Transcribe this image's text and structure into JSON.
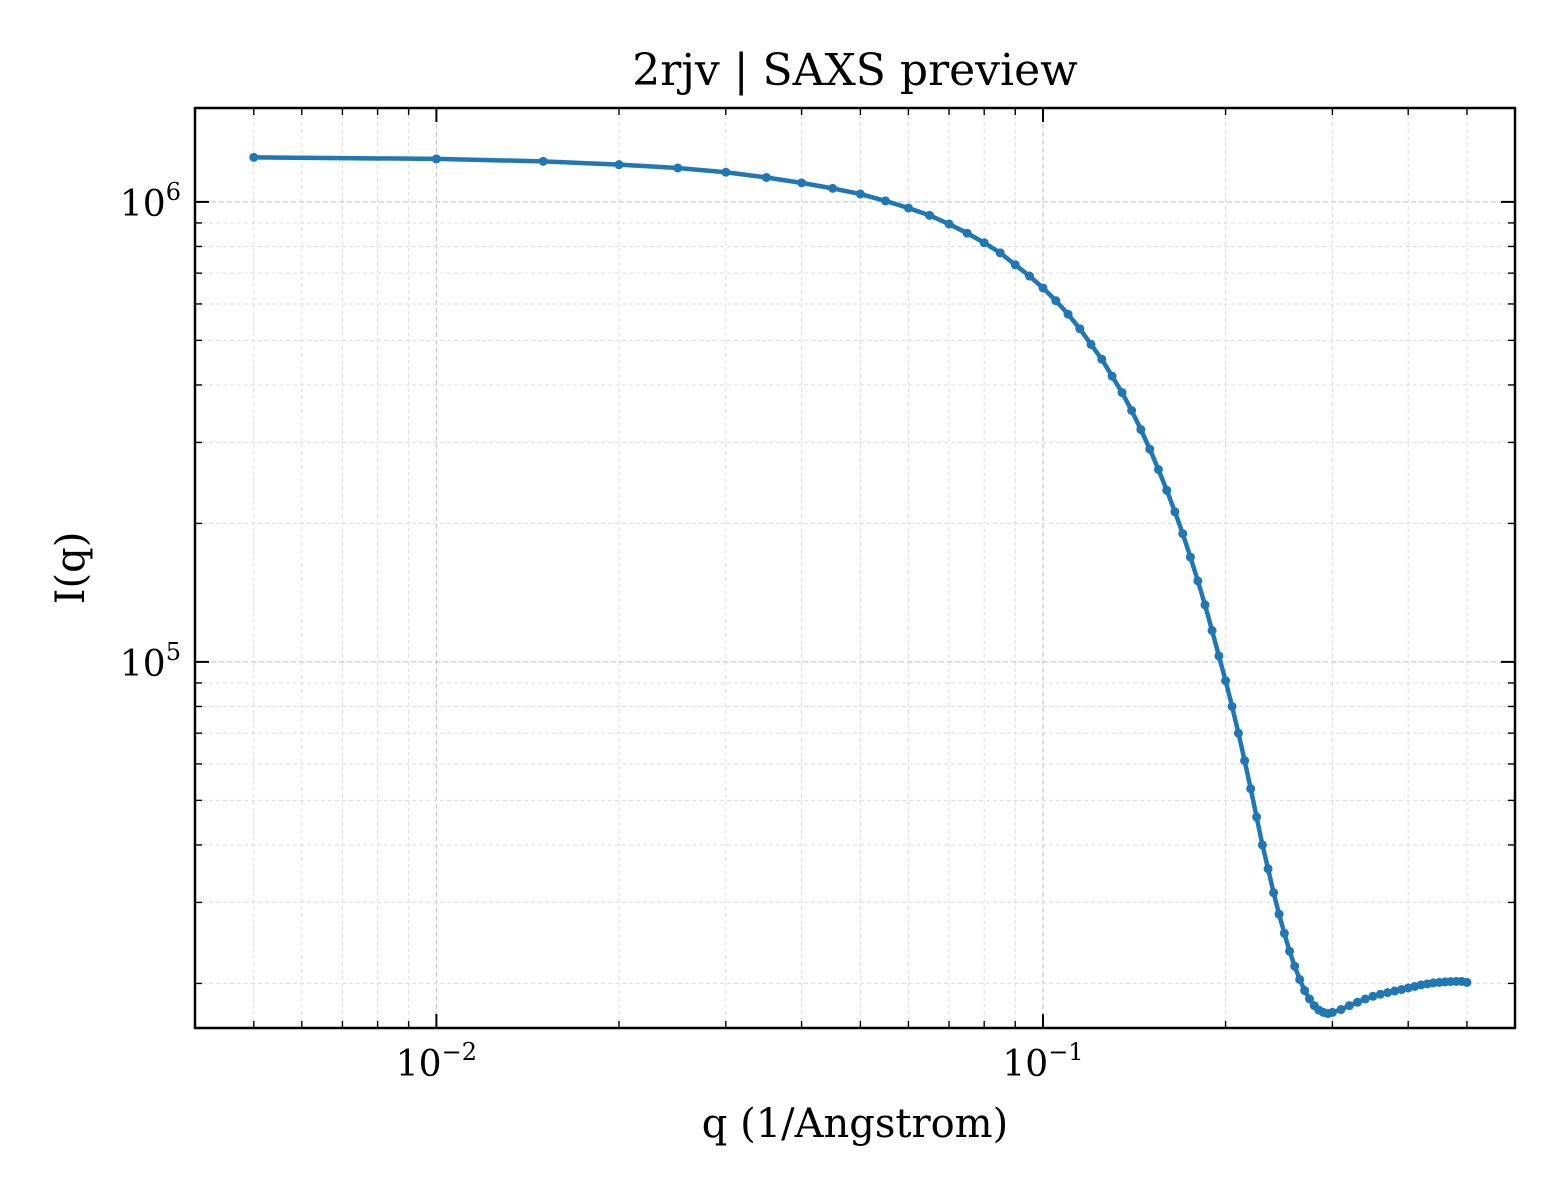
{
  "chart_data": {
    "type": "line",
    "title": "2rjv | SAXS preview",
    "xlabel": "q (1/Angstrom)",
    "ylabel": "I(q)",
    "xscale": "log",
    "yscale": "log",
    "xlim": [
      0.004,
      0.6
    ],
    "ylim": [
      16000,
      1600000
    ],
    "grid": true,
    "legend": "none",
    "line_color": "#1f77b4",
    "x_ticks": [
      {
        "base": "10",
        "exp": "−2",
        "value": 0.01
      },
      {
        "base": "10",
        "exp": "−1",
        "value": 0.1
      }
    ],
    "y_ticks": [
      {
        "base": "10",
        "exp": "5",
        "value": 100000
      },
      {
        "base": "10",
        "exp": "6",
        "value": 1000000
      }
    ],
    "series": [
      {
        "x": [
          0.005,
          0.01,
          0.015,
          0.02,
          0.025,
          0.03,
          0.035,
          0.04,
          0.045,
          0.05,
          0.055,
          0.06,
          0.065,
          0.07,
          0.075,
          0.08,
          0.085,
          0.09,
          0.095,
          0.1,
          0.105,
          0.11,
          0.115,
          0.12,
          0.125,
          0.13,
          0.135,
          0.14,
          0.145,
          0.15,
          0.155,
          0.16,
          0.165,
          0.17,
          0.175,
          0.18,
          0.185,
          0.19,
          0.195,
          0.2,
          0.205,
          0.21,
          0.215,
          0.22,
          0.225,
          0.23,
          0.235,
          0.24,
          0.245,
          0.25,
          0.255,
          0.26,
          0.265,
          0.27,
          0.275,
          0.28,
          0.285,
          0.29,
          0.295,
          0.3,
          0.31,
          0.32,
          0.33,
          0.34,
          0.35,
          0.36,
          0.37,
          0.38,
          0.39,
          0.4,
          0.41,
          0.42,
          0.43,
          0.44,
          0.45,
          0.46,
          0.47,
          0.48,
          0.49,
          0.5
        ],
        "y": [
          1250000,
          1240000,
          1225000,
          1205000,
          1185000,
          1160000,
          1130000,
          1100000,
          1070000,
          1040000,
          1005000,
          970000,
          935000,
          895000,
          855000,
          815000,
          775000,
          730000,
          690000,
          650000,
          610000,
          570000,
          530000,
          490000,
          455000,
          418000,
          385000,
          352000,
          320000,
          290000,
          262000,
          236000,
          212000,
          190000,
          169000,
          150000,
          133000,
          117000,
          103000,
          91000,
          80000,
          70000,
          61000,
          53000,
          46000,
          40000,
          35500,
          31500,
          28300,
          25700,
          23500,
          21800,
          20400,
          19300,
          18500,
          17900,
          17500,
          17300,
          17200,
          17300,
          17550,
          17900,
          18200,
          18500,
          18750,
          18950,
          19100,
          19250,
          19400,
          19550,
          19700,
          19850,
          19950,
          20050,
          20100,
          20150,
          20180,
          20200,
          20200,
          20100
        ]
      }
    ]
  }
}
